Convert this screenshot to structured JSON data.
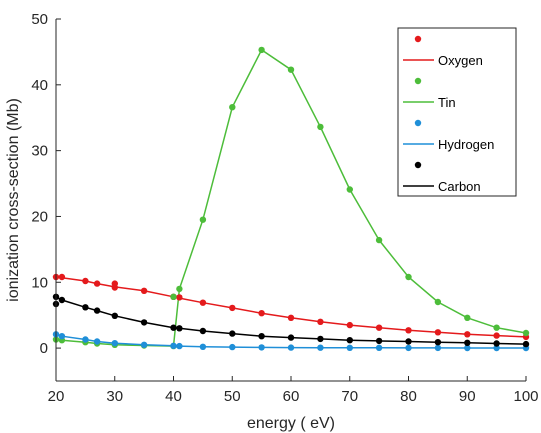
{
  "chart_data": {
    "type": "line",
    "title": "",
    "xlabel": "energy ( eV)",
    "ylabel": "ionization cross-section (Mb)",
    "xlim": [
      20,
      100
    ],
    "ylim": [
      -5,
      50
    ],
    "xticks": [
      20,
      30,
      40,
      50,
      60,
      70,
      80,
      90,
      100
    ],
    "yticks": [
      0,
      10,
      20,
      30,
      40,
      50
    ],
    "grid": false,
    "legend_position": "top-right",
    "series": [
      {
        "name": "Oxygen",
        "color": "#e41a1c",
        "x": [
          20,
          21,
          25,
          27,
          30,
          35,
          40,
          41,
          45,
          50,
          55,
          60,
          65,
          70,
          75,
          80,
          85,
          90,
          95,
          100
        ],
        "y": [
          10.8,
          10.7,
          10.2,
          9.8,
          9.3,
          8.7,
          7.8,
          7.6,
          6.9,
          6.1,
          5.3,
          4.6,
          4.0,
          3.5,
          3.1,
          2.7,
          2.4,
          2.1,
          1.9,
          1.7
        ],
        "marker_x": [
          20,
          21,
          25,
          27,
          30,
          30,
          35,
          40,
          41,
          45,
          50,
          55,
          60,
          65,
          70,
          75,
          80,
          85,
          90,
          95,
          100
        ],
        "marker_y": [
          10.8,
          10.8,
          10.2,
          9.8,
          9.8,
          9.2,
          8.7,
          7.8,
          7.7,
          6.9,
          6.1,
          5.3,
          4.6,
          4.0,
          3.5,
          3.1,
          2.7,
          2.4,
          2.1,
          1.9,
          1.7
        ]
      },
      {
        "name": "Tin",
        "color": "#4dbd3a",
        "x": [
          20,
          21,
          25,
          27,
          30,
          35,
          40,
          41,
          45,
          50,
          55,
          60,
          65,
          70,
          75,
          80,
          85,
          90,
          95,
          100
        ],
        "y": [
          1.3,
          1.2,
          0.9,
          0.7,
          0.5,
          0.4,
          0.3,
          9.0,
          19.5,
          36.6,
          45.3,
          42.3,
          33.6,
          24.1,
          16.4,
          10.8,
          7.0,
          4.6,
          3.1,
          2.3
        ],
        "marker_x": [
          20,
          21,
          25,
          27,
          30,
          35,
          40,
          40,
          41,
          45,
          50,
          55,
          60,
          65,
          70,
          75,
          80,
          85,
          90,
          95,
          100
        ],
        "marker_y": [
          1.3,
          1.2,
          0.9,
          0.7,
          0.5,
          0.4,
          0.3,
          7.8,
          9.0,
          19.5,
          36.6,
          45.3,
          42.3,
          33.6,
          24.1,
          16.4,
          10.8,
          7.0,
          4.6,
          3.1,
          2.3
        ]
      },
      {
        "name": "Hydrogen",
        "color": "#1f8fd8",
        "x": [
          20,
          21,
          25,
          27,
          30,
          35,
          40,
          41,
          45,
          50,
          55,
          60,
          65,
          70,
          75,
          80,
          85,
          90,
          95,
          100
        ],
        "y": [
          2.1,
          1.8,
          1.3,
          1.0,
          0.75,
          0.5,
          0.35,
          0.3,
          0.2,
          0.15,
          0.1,
          0.08,
          0.06,
          0.05,
          0.04,
          0.03,
          0.03,
          0.02,
          0.02,
          0.02
        ],
        "marker_x": [
          20,
          21,
          25,
          27,
          30,
          35,
          40,
          41,
          45,
          50,
          55,
          60,
          65,
          70,
          75,
          80,
          85,
          90,
          95,
          100
        ],
        "marker_y": [
          2.1,
          1.8,
          1.3,
          1.0,
          0.75,
          0.5,
          0.35,
          0.3,
          0.2,
          0.15,
          0.1,
          0.08,
          0.06,
          0.05,
          0.04,
          0.03,
          0.03,
          0.02,
          0.02,
          0.02
        ]
      },
      {
        "name": "Carbon",
        "color": "#000000",
        "x": [
          20,
          21,
          25,
          27,
          30,
          35,
          40,
          41,
          45,
          50,
          55,
          60,
          65,
          70,
          75,
          80,
          85,
          90,
          95,
          100
        ],
        "y": [
          7.8,
          7.3,
          6.2,
          5.7,
          4.9,
          3.9,
          3.1,
          3.0,
          2.6,
          2.2,
          1.8,
          1.6,
          1.4,
          1.2,
          1.1,
          1.0,
          0.9,
          0.8,
          0.7,
          0.6
        ],
        "marker_x": [
          20,
          20,
          21,
          25,
          27,
          30,
          35,
          40,
          41,
          45,
          50,
          55,
          60,
          65,
          70,
          75,
          80,
          85,
          90,
          95,
          100
        ],
        "marker_y": [
          7.8,
          6.7,
          7.3,
          6.2,
          5.7,
          4.9,
          3.9,
          3.1,
          3.0,
          2.6,
          2.2,
          1.8,
          1.6,
          1.4,
          1.2,
          1.1,
          1.0,
          0.9,
          0.8,
          0.7,
          0.6
        ]
      }
    ]
  }
}
